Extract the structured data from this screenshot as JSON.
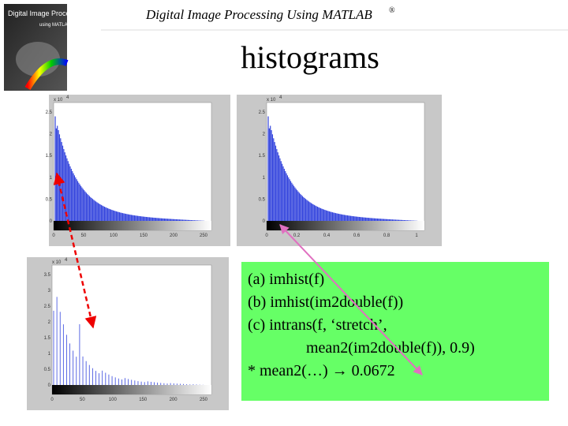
{
  "header": {
    "title": "Digital Image Processing Using MATLAB",
    "mark": "®"
  },
  "slide_title": "histograms",
  "book_cover": {
    "title": "Digital Image Processing",
    "subtitle": "using MATLAB"
  },
  "panels": [
    {
      "exponent": "x 10",
      "power": "4",
      "y_ticks": [
        "0",
        "0.5",
        "1",
        "1.5",
        "2",
        "2.5"
      ],
      "x_ticks": [
        "0",
        "50",
        "100",
        "150",
        "200",
        "250"
      ]
    },
    {
      "exponent": "x 10",
      "power": "4",
      "y_ticks": [
        "0",
        "0.5",
        "1",
        "1.5",
        "2",
        "2.5"
      ],
      "x_ticks": [
        "0",
        "0.2",
        "0.4",
        "0.6",
        "0.8",
        "1"
      ]
    },
    {
      "exponent": "x 10",
      "power": "4",
      "y_ticks": [
        "0",
        "0.5",
        "1",
        "1.5",
        "2",
        "2.5",
        "3",
        "3.5"
      ],
      "x_ticks": [
        "0",
        "50",
        "100",
        "150",
        "200",
        "250"
      ]
    }
  ],
  "caption": {
    "lines": [
      "(a) imhist(f)",
      "(b) imhist(im2double(f))",
      "(c) intrans(f, ‘stretch’,",
      "mean2(im2double(f)), 0.9)",
      "* mean2(…) → 0.0672"
    ]
  }
}
